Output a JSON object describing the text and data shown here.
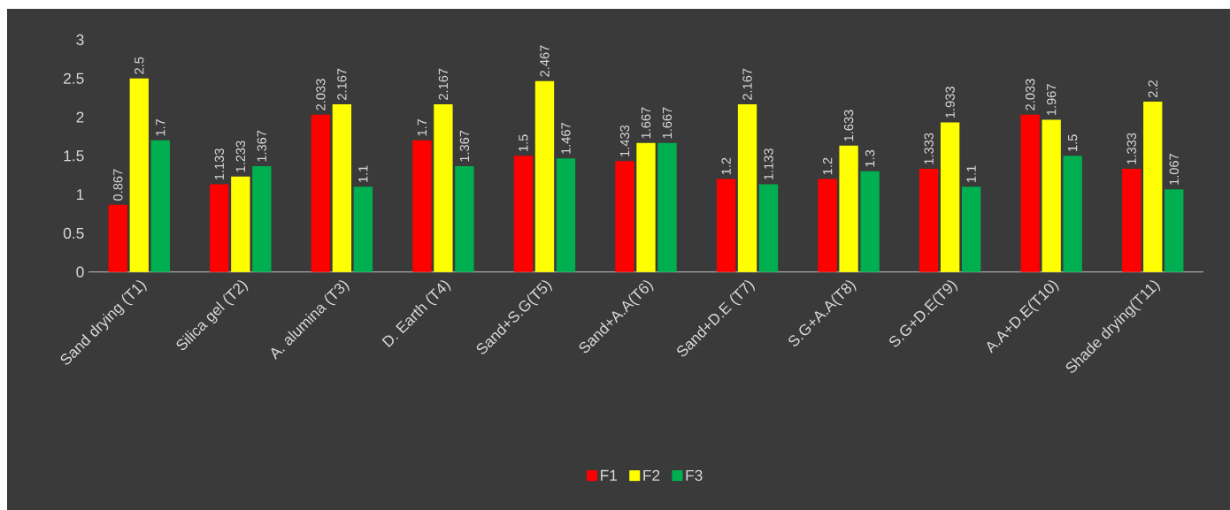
{
  "chart_data": {
    "type": "bar",
    "categories": [
      "Sand drying (T1)",
      "Silica gel (T2)",
      "A. alumina (T3)",
      "D. Earth (T4)",
      "Sand+S.G(T5)",
      "Sand+A.A(T6)",
      "Sand+D.E (T7)",
      "S.G+A.A(T8)",
      "S.G+D.E(T9)",
      "A.A+D.E(T10)",
      "Shade drying(T11)"
    ],
    "series": [
      {
        "name": "F1",
        "color": "#ff0000",
        "values": [
          0.867,
          1.133,
          2.033,
          1.7,
          1.5,
          1.433,
          1.2,
          1.2,
          1.333,
          2.033,
          1.333
        ]
      },
      {
        "name": "F2",
        "color": "#ffff00",
        "values": [
          2.5,
          1.233,
          2.167,
          2.167,
          2.467,
          1.667,
          2.167,
          1.633,
          1.933,
          1.967,
          2.2
        ]
      },
      {
        "name": "F3",
        "color": "#00b050",
        "values": [
          1.7,
          1.367,
          1.1,
          1.367,
          1.467,
          1.667,
          1.133,
          1.3,
          1.1,
          1.5,
          1.067
        ]
      }
    ],
    "ylim": [
      0,
      3
    ],
    "yticks": [
      0,
      0.5,
      1,
      1.5,
      2,
      2.5,
      3
    ],
    "data_labels": true,
    "legend": "bottom",
    "grid": false
  }
}
